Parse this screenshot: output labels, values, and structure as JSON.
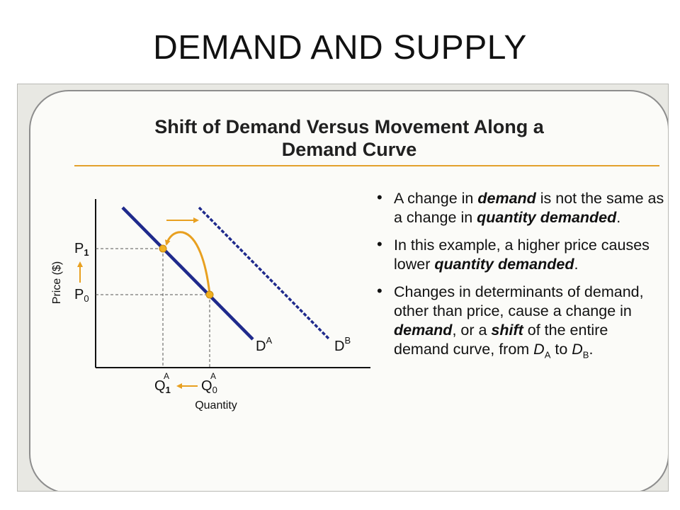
{
  "slide": {
    "title": "DEMAND AND SUPPLY"
  },
  "card": {
    "title_line1": "Shift of Demand Versus Movement Along a",
    "title_line2": "Demand Curve"
  },
  "diagram": {
    "y_axis_label": "Price ($)",
    "x_axis_label": "Quantity",
    "p1": {
      "main": "P",
      "sub": "1"
    },
    "p0": {
      "main": "P",
      "sub": "0"
    },
    "q1": {
      "main": "Q",
      "sub": "1",
      "sup": "A"
    },
    "q0": {
      "main": "Q",
      "sub": "0",
      "sup": "A"
    },
    "curve_a": {
      "main": "D",
      "sup": "A"
    },
    "curve_b": {
      "main": "D",
      "sup": "B"
    },
    "colors": {
      "curve": "#1f2a8c",
      "arrow": "#e8a020",
      "axis": "#111111"
    },
    "icons": [
      "up-arrow-icon",
      "left-arrow-icon",
      "right-arrow-icon",
      "curved-arrow-icon"
    ]
  },
  "bullets": {
    "b1": {
      "t1": "A change in ",
      "e1": "demand",
      "t2": " is not the same as a change in ",
      "e2": "quantity demanded",
      "t3": "."
    },
    "b2": {
      "t1": "In this example, a higher price causes lower ",
      "e1": "quantity demanded",
      "t2": "."
    },
    "b3": {
      "t1": "Changes in determinants of demand, other than price, cause a change in ",
      "e1": "demand",
      "t2": ", or a ",
      "e2": "shift",
      "t3": " of the entire demand curve, from ",
      "d1_main": "D",
      "d1_sub": "A",
      "t4": " to ",
      "d2_main": "D",
      "d2_sub": "B",
      "t5": "."
    }
  }
}
